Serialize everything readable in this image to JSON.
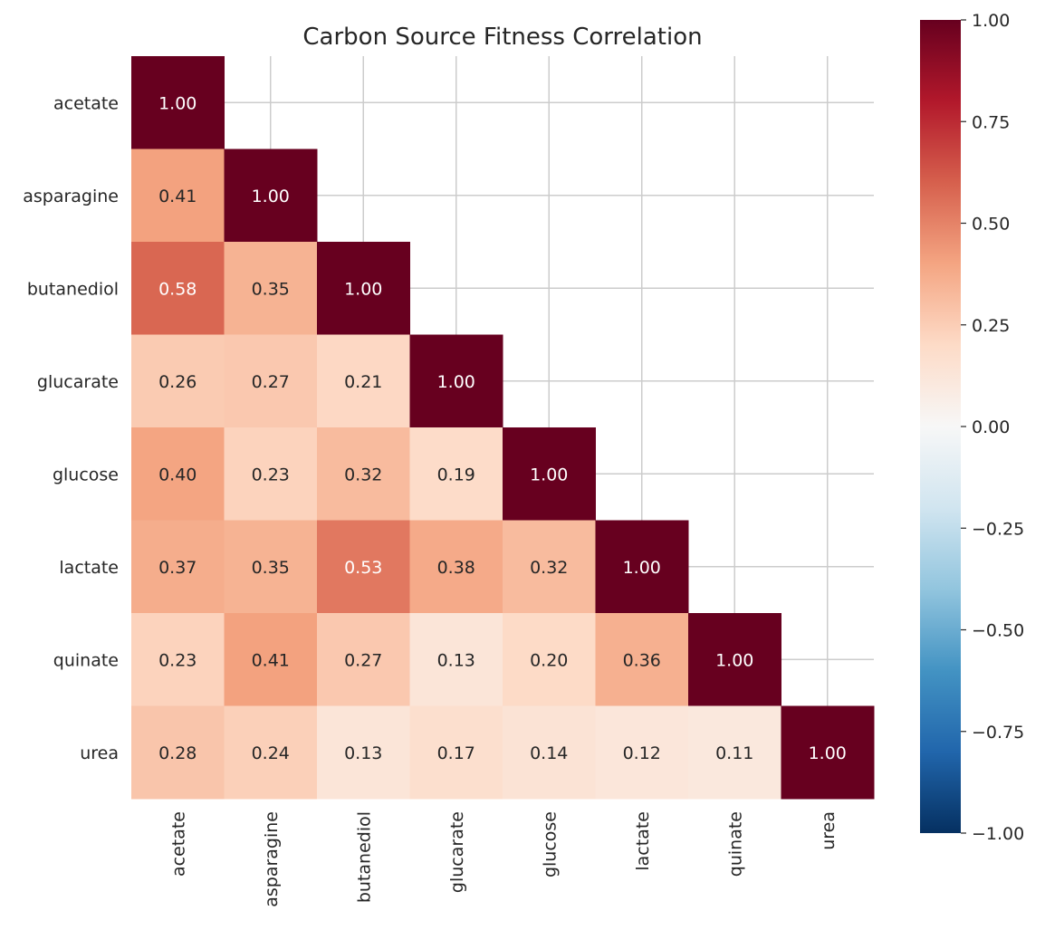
{
  "chart_data": {
    "type": "heatmap",
    "title": "Carbon Source Fitness Correlation",
    "xlabel": "",
    "ylabel": "",
    "rows": [
      "acetate",
      "asparagine",
      "butanediol",
      "glucarate",
      "glucose",
      "lactate",
      "quinate",
      "urea"
    ],
    "columns": [
      "acetate",
      "asparagine",
      "butanediol",
      "glucarate",
      "glucose",
      "lactate",
      "quinate",
      "urea"
    ],
    "mask": "upper triangle (above diagonal) hidden",
    "values": [
      [
        1.0
      ],
      [
        0.41,
        1.0
      ],
      [
        0.58,
        0.35,
        1.0
      ],
      [
        0.26,
        0.27,
        0.21,
        1.0
      ],
      [
        0.4,
        0.23,
        0.32,
        0.19,
        1.0
      ],
      [
        0.37,
        0.35,
        0.53,
        0.38,
        0.32,
        1.0
      ],
      [
        0.23,
        0.41,
        0.27,
        0.13,
        0.2,
        0.36,
        1.0
      ],
      [
        0.28,
        0.24,
        0.13,
        0.17,
        0.14,
        0.12,
        0.11,
        1.0
      ]
    ],
    "annotation_format": "0.00",
    "colormap": "RdBu_r",
    "colormap_stops": [
      "#053061",
      "#2166ac",
      "#4393c3",
      "#92c5de",
      "#d1e5f0",
      "#f7f7f7",
      "#fddbc7",
      "#f4a582",
      "#d6604d",
      "#b2182b",
      "#67001f"
    ],
    "vmin": -1.0,
    "vmax": 1.0,
    "colorbar_ticks": [
      "−1.00",
      "−0.75",
      "−0.50",
      "−0.25",
      "0.00",
      "0.25",
      "0.50",
      "0.75",
      "1.00"
    ],
    "colorbar_tick_values": [
      -1,
      -0.75,
      -0.5,
      -0.25,
      0,
      0.25,
      0.5,
      0.75,
      1
    ],
    "grid": true,
    "grid_color": "#cccccc",
    "text_color": "#262626"
  }
}
